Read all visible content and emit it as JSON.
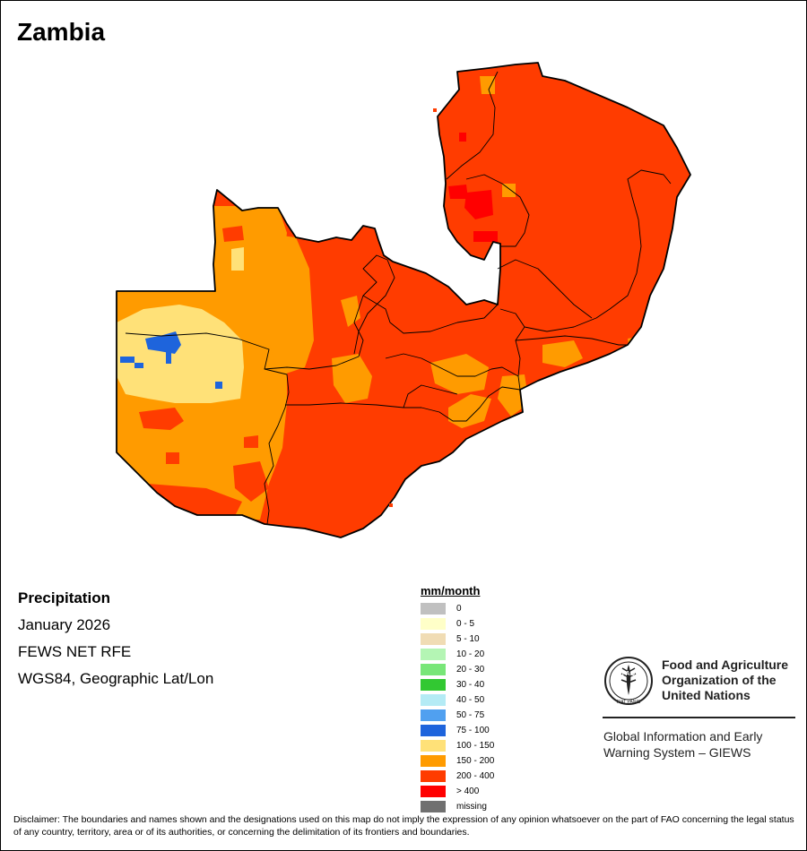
{
  "title": "Zambia",
  "info": {
    "variable": "Precipitation",
    "period": "January 2026",
    "source": "FEWS NET RFE",
    "projection": "WGS84, Geographic Lat/Lon"
  },
  "legend": {
    "title": "mm/month",
    "items": [
      {
        "label": "0",
        "color": "#c0c0c0"
      },
      {
        "label": "0 - 5",
        "color": "#ffffc8"
      },
      {
        "label": "5 - 10",
        "color": "#f0dcb4"
      },
      {
        "label": "10 - 20",
        "color": "#b4f5b4"
      },
      {
        "label": "20 - 30",
        "color": "#78e678"
      },
      {
        "label": "30 - 40",
        "color": "#32c832"
      },
      {
        "label": "40 - 50",
        "color": "#b4ebf5"
      },
      {
        "label": "50 - 75",
        "color": "#50a0f0"
      },
      {
        "label": "75 - 100",
        "color": "#1e64dc"
      },
      {
        "label": "100 - 150",
        "color": "#ffe178"
      },
      {
        "label": "150 - 200",
        "color": "#ff9b00"
      },
      {
        "label": "200 - 400",
        "color": "#ff3c00"
      },
      {
        "label": "> 400",
        "color": "#ff0000"
      },
      {
        "label": "missing",
        "color": "#707070"
      }
    ]
  },
  "organization": {
    "logo_text": "FAO",
    "logo_motto": "FIAT PANIS",
    "name_lines": [
      "Food and Agriculture",
      "Organization of the",
      "United Nations"
    ],
    "system_lines": [
      "Global Information and Early",
      "Warning System – GIEWS"
    ]
  },
  "disclaimer": "Disclaimer: The boundaries and names shown and the designations used on this map do not imply the expression of any opinion whatsoever on the part of FAO concerning the legal status of any country, territory, area or of its authorities, or concerning the delimitation of its frontiers and boundaries."
}
